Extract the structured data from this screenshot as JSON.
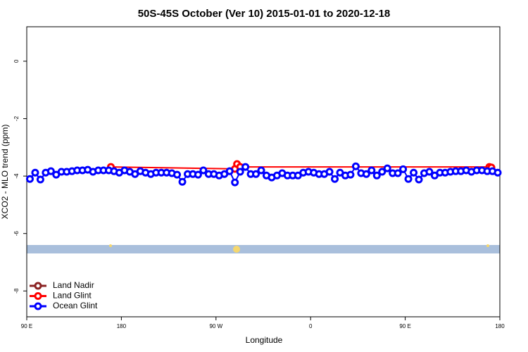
{
  "chart_data": {
    "type": "line",
    "title": "50S-45S October (Ver 10)   2015-01-01 to 2020-12-18",
    "x_label": "Longitude",
    "y_label": "XCO2 - MLO trend (ppm)",
    "xlim": [
      90,
      540
    ],
    "ylim": [
      -8.9,
      1.2
    ],
    "xticks": [
      {
        "value": 90,
        "label": "90 E"
      },
      180,
      {
        "value": 270,
        "label": "90 W"
      },
      {
        "value": 360,
        "label": "0"
      },
      {
        "value": 450,
        "label": "90 E"
      },
      {
        "value": 540,
        "label": "180"
      }
    ],
    "yticks": [
      0,
      -2,
      -4,
      -6,
      -8
    ],
    "legend": "bottom-left",
    "series": [
      {
        "name": "Land Nadir",
        "color": "#8b2323",
        "x": [],
        "values": []
      },
      {
        "name": "Land Glint",
        "color": "#ff0000",
        "x": [
          170,
          288,
          290,
          293,
          530,
          532
        ],
        "values": [
          -3.68,
          -3.75,
          -3.58,
          -3.68,
          -3.68,
          -3.7
        ]
      },
      {
        "name": "Ocean Glint",
        "color": "#0000ff",
        "x": [
          93,
          98,
          103,
          108,
          113,
          118,
          123,
          128,
          133,
          138,
          143,
          148,
          153,
          158,
          163,
          168,
          173,
          178,
          183,
          188,
          193,
          198,
          203,
          208,
          213,
          218,
          223,
          228,
          233,
          238,
          243,
          248,
          253,
          258,
          263,
          268,
          273,
          278,
          283,
          288,
          293,
          298,
          303,
          308,
          313,
          318,
          323,
          328,
          333,
          338,
          343,
          348,
          353,
          358,
          363,
          368,
          373,
          378,
          383,
          388,
          393,
          398,
          403,
          408,
          413,
          418,
          423,
          428,
          433,
          438,
          443,
          448,
          453,
          458,
          463,
          468,
          473,
          478,
          483,
          488,
          493,
          498,
          503,
          508,
          513,
          518,
          523,
          528,
          533,
          538
        ],
        "values": [
          -4.1,
          -3.88,
          -4.12,
          -3.88,
          -3.83,
          -3.95,
          -3.85,
          -3.85,
          -3.83,
          -3.8,
          -3.8,
          -3.78,
          -3.85,
          -3.8,
          -3.8,
          -3.8,
          -3.83,
          -3.88,
          -3.8,
          -3.85,
          -3.93,
          -3.83,
          -3.88,
          -3.93,
          -3.88,
          -3.88,
          -3.88,
          -3.9,
          -3.95,
          -4.2,
          -3.93,
          -3.93,
          -3.95,
          -3.8,
          -3.93,
          -3.93,
          -3.98,
          -3.93,
          -3.83,
          -4.22,
          -3.85,
          -3.68,
          -3.93,
          -3.93,
          -3.8,
          -3.98,
          -4.05,
          -3.98,
          -3.9,
          -3.98,
          -3.98,
          -3.98,
          -3.88,
          -3.85,
          -3.88,
          -3.93,
          -3.93,
          -3.85,
          -4.1,
          -3.88,
          -3.98,
          -3.95,
          -3.66,
          -3.9,
          -3.93,
          -3.8,
          -3.98,
          -3.85,
          -3.73,
          -3.9,
          -3.9,
          -3.76,
          -4.1,
          -3.88,
          -4.12,
          -3.9,
          -3.85,
          -3.98,
          -3.88,
          -3.88,
          -3.85,
          -3.83,
          -3.83,
          -3.8,
          -3.85,
          -3.8,
          -3.8,
          -3.83,
          -3.83,
          -3.88
        ]
      }
    ]
  }
}
